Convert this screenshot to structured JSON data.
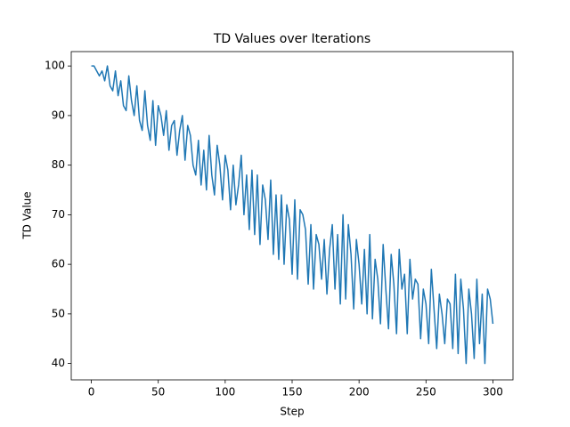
{
  "chart_data": {
    "type": "line",
    "title": "TD Values over Iterations",
    "x_label": "Step",
    "y_label": "TD Value",
    "color": "#1f77b4",
    "x": [
      0,
      2,
      4,
      6,
      8,
      10,
      12,
      14,
      16,
      18,
      20,
      22,
      24,
      26,
      28,
      30,
      32,
      34,
      36,
      38,
      40,
      42,
      44,
      46,
      48,
      50,
      52,
      54,
      56,
      58,
      60,
      62,
      64,
      66,
      68,
      70,
      72,
      74,
      76,
      78,
      80,
      82,
      84,
      86,
      88,
      90,
      92,
      94,
      96,
      98,
      100,
      102,
      104,
      106,
      108,
      110,
      112,
      114,
      116,
      118,
      120,
      122,
      124,
      126,
      128,
      130,
      132,
      134,
      136,
      138,
      140,
      142,
      144,
      146,
      148,
      150,
      152,
      154,
      156,
      158,
      160,
      162,
      164,
      166,
      168,
      170,
      172,
      174,
      176,
      178,
      180,
      182,
      184,
      186,
      188,
      190,
      192,
      194,
      196,
      198,
      200,
      202,
      204,
      206,
      208,
      210,
      212,
      214,
      216,
      218,
      220,
      222,
      224,
      226,
      228,
      230,
      232,
      234,
      236,
      238,
      240,
      242,
      244,
      246,
      248,
      250,
      252,
      254,
      256,
      258,
      260,
      262,
      264,
      266,
      268,
      270,
      272,
      274,
      276,
      278,
      280,
      282,
      284,
      286,
      288,
      290,
      292,
      294,
      296,
      298,
      300
    ],
    "values": [
      100,
      100,
      99,
      98,
      99,
      97,
      100,
      96,
      95,
      99,
      94,
      97,
      92,
      91,
      98,
      93,
      90,
      96,
      89,
      87,
      95,
      88,
      85,
      93,
      84,
      92,
      90,
      86,
      91,
      83,
      88,
      89,
      82,
      87,
      90,
      81,
      88,
      86,
      80,
      78,
      85,
      76,
      83,
      75,
      86,
      78,
      74,
      84,
      80,
      73,
      82,
      79,
      71,
      80,
      72,
      76,
      82,
      70,
      78,
      67,
      79,
      66,
      78,
      64,
      76,
      73,
      65,
      77,
      62,
      74,
      61,
      74,
      60,
      72,
      69,
      58,
      73,
      57,
      71,
      70,
      67,
      56,
      68,
      55,
      66,
      64,
      57,
      65,
      54,
      63,
      68,
      55,
      66,
      52,
      70,
      53,
      68,
      62,
      51,
      65,
      60,
      52,
      63,
      50,
      66,
      49,
      61,
      57,
      48,
      64,
      55,
      47,
      62,
      56,
      46,
      63,
      55,
      58,
      46,
      61,
      53,
      57,
      56,
      45,
      55,
      52,
      44,
      59,
      51,
      43,
      54,
      50,
      44,
      53,
      52,
      43,
      58,
      42,
      57,
      51,
      40,
      55,
      50,
      41,
      57,
      44,
      54,
      40,
      55,
      53,
      48
    ],
    "xlim": [
      -15,
      315
    ],
    "ylim": [
      36.7,
      102.9
    ],
    "xticks": [
      0,
      50,
      100,
      150,
      200,
      250,
      300
    ],
    "yticks": [
      40,
      50,
      60,
      70,
      80,
      90,
      100
    ]
  }
}
